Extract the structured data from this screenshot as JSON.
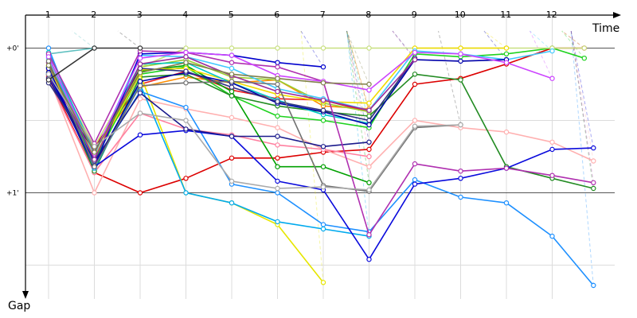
{
  "chart_data": {
    "type": "line",
    "title": "",
    "xlabel": "Time",
    "ylabel": "Gap",
    "x_ticks": [
      "1",
      "2",
      "3",
      "4",
      "5",
      "6",
      "7",
      "8",
      "9",
      "10",
      "11",
      "12"
    ],
    "y_tick_labels": [
      "+0'",
      "+1'"
    ],
    "y_ticks": [
      0,
      1
    ],
    "xlim": [
      0.5,
      12.9
    ],
    "ylim": [
      -0.15,
      1.75
    ],
    "grid": true,
    "series": [
      {
        "color": "#dc0000",
        "values": [
          [
            1,
            0.2
          ],
          [
            2,
            0.86
          ],
          [
            3,
            1.0
          ],
          [
            4,
            0.9
          ],
          [
            5,
            0.76
          ],
          [
            6,
            0.76
          ],
          [
            7,
            0.72
          ],
          [
            8,
            0.7
          ],
          [
            9,
            0.25
          ],
          [
            10,
            0.21
          ],
          [
            11,
            0.11
          ],
          [
            12,
            0.0
          ],
          [
            12.7,
            0.0
          ]
        ]
      },
      {
        "color": "#ff8c00",
        "values": [
          [
            1,
            0.15
          ],
          [
            2,
            0.7
          ],
          [
            3,
            0.27
          ],
          [
            4,
            0.2
          ],
          [
            5,
            0.24
          ],
          [
            6,
            0.22
          ],
          [
            7,
            0.4
          ],
          [
            8,
            0.42
          ]
        ]
      },
      {
        "color": "#ffb0b0",
        "values": [
          [
            1,
            0.2
          ],
          [
            2,
            1.0
          ],
          [
            3,
            0.35
          ],
          [
            4,
            0.42
          ],
          [
            5,
            0.48
          ],
          [
            6,
            0.55
          ],
          [
            7,
            0.7
          ],
          [
            8,
            0.82
          ],
          [
            9,
            0.5
          ],
          [
            10,
            0.55
          ],
          [
            11,
            0.58
          ],
          [
            12,
            0.65
          ],
          [
            12.9,
            0.78
          ]
        ]
      },
      {
        "color": "#ff80a0",
        "values": [
          [
            1,
            0.22
          ],
          [
            2,
            0.86
          ],
          [
            3,
            0.45
          ],
          [
            4,
            0.56
          ],
          [
            5,
            0.6
          ],
          [
            6,
            0.67
          ],
          [
            7,
            0.7
          ],
          [
            8,
            0.75
          ]
        ]
      },
      {
        "color": "#eb1e1e",
        "values": [
          [
            1,
            0.19
          ],
          [
            2,
            0.68
          ],
          [
            3,
            0.25
          ],
          [
            4,
            0.16
          ],
          [
            5,
            0.29
          ],
          [
            6,
            0.35
          ],
          [
            7,
            0.36
          ],
          [
            8,
            0.44
          ]
        ]
      },
      {
        "color": "#00a000",
        "values": [
          [
            1,
            0.18
          ],
          [
            2,
            0.76
          ],
          [
            3,
            0.16
          ],
          [
            4,
            0.12
          ],
          [
            5,
            0.3
          ],
          [
            6,
            0.82
          ],
          [
            7,
            0.82
          ],
          [
            8,
            0.93
          ]
        ]
      },
      {
        "color": "#1fd21f",
        "values": [
          [
            1,
            0.17
          ],
          [
            2,
            0.78
          ],
          [
            3,
            0.18
          ],
          [
            4,
            0.13
          ],
          [
            5,
            0.33
          ],
          [
            6,
            0.47
          ],
          [
            7,
            0.5
          ],
          [
            8,
            0.55
          ],
          [
            9,
            0.04
          ],
          [
            10,
            0.06
          ],
          [
            11,
            0.04
          ],
          [
            12,
            0.0
          ],
          [
            12.7,
            0.07
          ]
        ]
      },
      {
        "color": "#228b22",
        "values": [
          [
            1,
            0.13
          ],
          [
            2,
            0.85
          ],
          [
            3,
            0.2
          ],
          [
            4,
            0.18
          ],
          [
            5,
            0.33
          ],
          [
            6,
            0.4
          ],
          [
            7,
            0.44
          ],
          [
            8,
            0.47
          ],
          [
            9,
            0.18
          ],
          [
            10,
            0.22
          ],
          [
            11,
            0.82
          ],
          [
            12,
            0.9
          ],
          [
            12.9,
            0.97
          ]
        ]
      },
      {
        "color": "#9acd32",
        "values": [
          [
            1,
            0.1
          ],
          [
            2,
            0.72
          ],
          [
            3,
            0.13
          ],
          [
            4,
            0.08
          ],
          [
            5,
            0.2
          ],
          [
            6,
            0.22
          ],
          [
            7,
            0.38
          ],
          [
            8,
            0.44
          ]
        ]
      },
      {
        "color": "#c8e080",
        "values": [
          [
            1,
            0.08
          ],
          [
            2,
            0.68
          ],
          [
            3,
            0.13
          ],
          [
            4,
            0.0
          ],
          [
            5,
            0.0
          ],
          [
            6,
            0.0
          ],
          [
            7,
            0.0
          ],
          [
            8,
            0.0
          ],
          [
            9,
            0.0
          ],
          [
            10,
            0.0
          ],
          [
            11,
            0.0
          ],
          [
            12,
            0.0
          ],
          [
            12.7,
            0.0
          ]
        ]
      },
      {
        "color": "#e6e600",
        "values": [
          [
            1,
            0.12
          ],
          [
            2,
            0.75
          ],
          [
            3,
            0.18
          ],
          [
            4,
            1.0
          ],
          [
            5,
            1.07
          ],
          [
            6,
            1.22
          ],
          [
            7,
            1.62
          ]
        ]
      },
      {
        "color": "#f0dc00",
        "values": [
          [
            1,
            0.14
          ],
          [
            2,
            0.71
          ],
          [
            3,
            0.15
          ],
          [
            4,
            0.14
          ],
          [
            5,
            0.23
          ],
          [
            6,
            0.32
          ],
          [
            7,
            0.37
          ],
          [
            8,
            0.38
          ],
          [
            9,
            0.0
          ],
          [
            10,
            0.0
          ],
          [
            11,
            0.0
          ]
        ]
      },
      {
        "color": "#1e90ff",
        "values": [
          [
            1,
            0.0
          ],
          [
            2,
            0.8
          ],
          [
            3,
            0.3
          ],
          [
            4,
            0.41
          ],
          [
            5,
            0.94
          ],
          [
            6,
            1.0
          ],
          [
            7,
            1.22
          ],
          [
            8,
            1.27
          ],
          [
            9,
            0.91
          ],
          [
            10,
            1.03
          ],
          [
            11,
            1.07
          ],
          [
            12,
            1.3
          ],
          [
            12.9,
            1.64
          ]
        ]
      },
      {
        "color": "#00aaee",
        "values": [
          [
            1,
            0.05
          ],
          [
            2,
            0.83
          ],
          [
            3,
            0.25
          ],
          [
            4,
            1.0
          ],
          [
            5,
            1.07
          ],
          [
            6,
            1.2
          ],
          [
            7,
            1.25
          ],
          [
            8,
            1.3
          ]
        ]
      },
      {
        "color": "#40c8ff",
        "values": [
          [
            1,
            0.07
          ],
          [
            2,
            0.74
          ],
          [
            3,
            0.05
          ],
          [
            4,
            0.06
          ],
          [
            5,
            0.14
          ],
          [
            6,
            0.28
          ],
          [
            7,
            0.35
          ],
          [
            8,
            0.43
          ],
          [
            9,
            0.02
          ],
          [
            10,
            0.04
          ],
          [
            11,
            0.08
          ],
          [
            12,
            0.02
          ]
        ]
      },
      {
        "color": "#00c8c8",
        "values": [
          [
            1,
            0.03
          ],
          [
            2,
            0.72
          ],
          [
            3,
            0.11
          ],
          [
            4,
            0.1
          ],
          [
            5,
            0.24
          ],
          [
            6,
            0.36
          ],
          [
            7,
            0.46
          ],
          [
            8,
            0.52
          ]
        ]
      },
      {
        "color": "#5fc0c0",
        "values": [
          [
            1,
            0.04
          ],
          [
            2,
            0.0
          ]
        ]
      },
      {
        "color": "#0000cd",
        "values": [
          [
            1,
            0.14
          ],
          [
            2,
            0.82
          ],
          [
            3,
            0.04
          ],
          [
            4,
            0.03
          ],
          [
            5,
            0.05
          ],
          [
            6,
            0.1
          ],
          [
            7,
            0.13
          ]
        ]
      },
      {
        "color": "#0a0adc",
        "values": [
          [
            1,
            0.18
          ],
          [
            2,
            0.82
          ],
          [
            3,
            0.6
          ],
          [
            4,
            0.57
          ],
          [
            5,
            0.61
          ],
          [
            6,
            0.92
          ],
          [
            7,
            0.98
          ],
          [
            8,
            1.46
          ],
          [
            9,
            0.94
          ],
          [
            10,
            0.9
          ],
          [
            11,
            0.83
          ],
          [
            12,
            0.7
          ],
          [
            12.9,
            0.69
          ]
        ]
      },
      {
        "color": "#0000aa",
        "values": [
          [
            1,
            0.17
          ],
          [
            2,
            0.81
          ],
          [
            3,
            0.23
          ],
          [
            4,
            0.17
          ],
          [
            5,
            0.24
          ],
          [
            6,
            0.38
          ],
          [
            7,
            0.44
          ],
          [
            8,
            0.53
          ],
          [
            9,
            0.08
          ],
          [
            10,
            0.09
          ],
          [
            11,
            0.08
          ]
        ]
      },
      {
        "color": "#1a1a8c",
        "values": [
          [
            1,
            0.21
          ],
          [
            2,
            0.78
          ],
          [
            3,
            0.31
          ],
          [
            4,
            0.56
          ],
          [
            5,
            0.61
          ],
          [
            6,
            0.61
          ],
          [
            7,
            0.68
          ],
          [
            8,
            0.65
          ]
        ]
      },
      {
        "color": "#303080",
        "values": [
          [
            1,
            0.24
          ],
          [
            2,
            0.71
          ],
          [
            3,
            0.14
          ],
          [
            4,
            0.16
          ],
          [
            5,
            0.27
          ],
          [
            6,
            0.37
          ],
          [
            7,
            0.43
          ],
          [
            8,
            0.5
          ],
          [
            9,
            0.07
          ]
        ]
      },
      {
        "color": "#b030b0",
        "values": [
          [
            1,
            0.04
          ],
          [
            2,
            0.66
          ],
          [
            3,
            0.02
          ],
          [
            4,
            0.03
          ],
          [
            5,
            0.1
          ],
          [
            6,
            0.13
          ],
          [
            7,
            0.23
          ],
          [
            8,
            1.29
          ],
          [
            9,
            0.8
          ],
          [
            10,
            0.85
          ],
          [
            11,
            0.83
          ],
          [
            12,
            0.88
          ],
          [
            12.9,
            0.93
          ]
        ]
      },
      {
        "color": "#cc44ff",
        "values": [
          [
            1,
            0.06
          ],
          [
            2,
            0.73
          ],
          [
            3,
            0.07
          ],
          [
            4,
            0.03
          ],
          [
            5,
            0.05
          ],
          [
            6,
            0.19
          ],
          [
            7,
            0.23
          ],
          [
            8,
            0.29
          ],
          [
            9,
            0.03
          ],
          [
            10,
            0.04
          ],
          [
            11,
            0.1
          ],
          [
            12,
            0.21
          ]
        ]
      },
      {
        "color": "#9a2a9a",
        "values": [
          [
            1,
            0.1
          ],
          [
            2,
            0.77
          ],
          [
            3,
            0.11
          ],
          [
            4,
            0.06
          ],
          [
            5,
            0.19
          ],
          [
            6,
            0.3
          ],
          [
            7,
            0.36
          ],
          [
            8,
            0.43
          ],
          [
            9,
            0.08
          ]
        ]
      },
      {
        "color": "#707070",
        "values": [
          [
            1,
            0.09
          ],
          [
            2,
            0.82
          ],
          [
            3,
            0.26
          ],
          [
            4,
            0.24
          ],
          [
            5,
            0.23
          ],
          [
            6,
            0.25
          ],
          [
            7,
            0.95
          ],
          [
            8,
            0.99
          ],
          [
            9,
            0.55
          ],
          [
            10,
            0.53
          ]
        ]
      },
      {
        "color": "#aaaaaa",
        "values": [
          [
            1,
            0.18
          ],
          [
            2,
            0.68
          ],
          [
            3,
            0.45
          ],
          [
            4,
            0.5
          ],
          [
            5,
            0.92
          ],
          [
            6,
            0.97
          ],
          [
            7,
            0.96
          ],
          [
            8,
            0.98
          ],
          [
            9,
            0.54
          ],
          [
            10,
            0.53
          ]
        ]
      },
      {
        "color": "#80804a",
        "values": [
          [
            1,
            0.12
          ],
          [
            2,
            0.72
          ],
          [
            3,
            0.17
          ],
          [
            4,
            0.1
          ],
          [
            5,
            0.18
          ],
          [
            6,
            0.21
          ],
          [
            7,
            0.24
          ],
          [
            8,
            0.25
          ]
        ]
      },
      {
        "color": "#333333",
        "values": [
          [
            1,
            0.22
          ],
          [
            2,
            0.0
          ],
          [
            3,
            0.0
          ]
        ]
      }
    ]
  }
}
